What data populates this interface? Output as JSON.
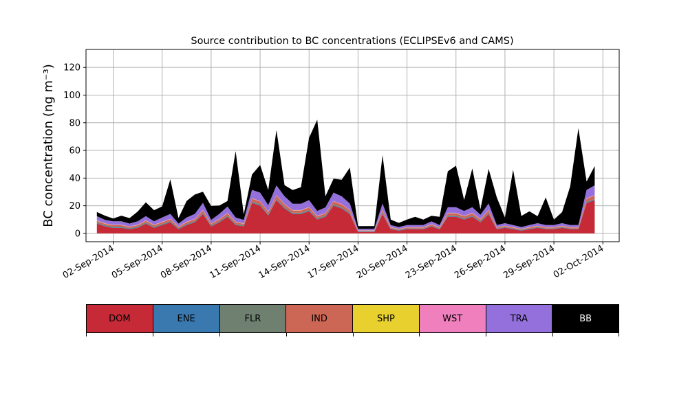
{
  "chart_data": {
    "type": "area",
    "title": "Source contribution to BC concentrations (ECLIPSEv6 and CAMS)",
    "ylabel": "BC concentration (ng m⁻³)",
    "xlabel": "",
    "grid": true,
    "ylim": [
      -6,
      133
    ],
    "yticks": [
      0,
      20,
      40,
      60,
      80,
      100,
      120
    ],
    "x_range": [
      "2014-08-31T08:00",
      "2014-10-03T00:00"
    ],
    "x_ticks": [
      {
        "date": "2014-09-02",
        "label": "02-Sep-2014"
      },
      {
        "date": "2014-09-05",
        "label": "05-Sep-2014"
      },
      {
        "date": "2014-09-08",
        "label": "08-Sep-2014"
      },
      {
        "date": "2014-09-11",
        "label": "11-Sep-2014"
      },
      {
        "date": "2014-09-14",
        "label": "14-Sep-2014"
      },
      {
        "date": "2014-09-17",
        "label": "17-Sep-2014"
      },
      {
        "date": "2014-09-20",
        "label": "20-Sep-2014"
      },
      {
        "date": "2014-09-23",
        "label": "23-Sep-2014"
      },
      {
        "date": "2014-09-26",
        "label": "26-Sep-2014"
      },
      {
        "date": "2014-09-29",
        "label": "29-Sep-2014"
      },
      {
        "date": "2014-10-02",
        "label": "02-Oct-2014"
      }
    ],
    "legend_placement": "below chart (color bar)",
    "dates": [
      "2014-09-01T00:00",
      "2014-09-01T12:00",
      "2014-09-02T00:00",
      "2014-09-02T12:00",
      "2014-09-03T00:00",
      "2014-09-03T12:00",
      "2014-09-04T00:00",
      "2014-09-04T12:00",
      "2014-09-05T00:00",
      "2014-09-05T12:00",
      "2014-09-06T00:00",
      "2014-09-06T12:00",
      "2014-09-07T00:00",
      "2014-09-07T12:00",
      "2014-09-08T00:00",
      "2014-09-08T12:00",
      "2014-09-09T00:00",
      "2014-09-09T12:00",
      "2014-09-10T00:00",
      "2014-09-10T12:00",
      "2014-09-11T00:00",
      "2014-09-11T12:00",
      "2014-09-12T00:00",
      "2014-09-12T12:00",
      "2014-09-13T00:00",
      "2014-09-13T12:00",
      "2014-09-14T00:00",
      "2014-09-14T12:00",
      "2014-09-15T00:00",
      "2014-09-15T12:00",
      "2014-09-16T00:00",
      "2014-09-16T12:00",
      "2014-09-17T00:00",
      "2014-09-17T12:00",
      "2014-09-18T00:00",
      "2014-09-18T12:00",
      "2014-09-19T00:00",
      "2014-09-19T12:00",
      "2014-09-20T00:00",
      "2014-09-20T12:00",
      "2014-09-21T00:00",
      "2014-09-21T12:00",
      "2014-09-22T00:00",
      "2014-09-22T12:00",
      "2014-09-23T00:00",
      "2014-09-23T12:00",
      "2014-09-24T00:00",
      "2014-09-24T12:00",
      "2014-09-25T00:00",
      "2014-09-25T12:00",
      "2014-09-26T00:00",
      "2014-09-26T12:00",
      "2014-09-27T00:00",
      "2014-09-27T12:00",
      "2014-09-28T00:00",
      "2014-09-28T12:00",
      "2014-09-29T00:00",
      "2014-09-29T12:00",
      "2014-09-30T00:00",
      "2014-09-30T12:00",
      "2014-10-01T00:00",
      "2014-10-01T12:00"
    ],
    "series": [
      {
        "name": "DOM",
        "color": "#c62a36",
        "values": [
          7,
          5,
          4,
          4,
          3,
          4,
          7,
          4,
          6,
          8,
          3,
          6,
          8,
          14,
          5,
          8,
          12,
          6,
          5,
          22,
          20,
          13,
          24,
          18,
          14,
          14,
          16,
          10,
          12,
          20,
          18,
          14,
          1,
          1,
          1,
          14,
          3,
          2,
          3,
          3,
          3,
          5,
          3,
          12,
          12,
          10,
          12,
          8,
          14,
          3,
          4,
          3,
          2,
          3,
          4,
          3,
          3,
          4,
          3,
          3,
          22,
          24
        ]
      },
      {
        "name": "ENE",
        "color": "#3a78b0",
        "values": [
          0.4,
          0.4,
          0.4,
          0.4,
          0.4,
          0.4,
          0.4,
          0.4,
          0.4,
          0.4,
          0.4,
          0.4,
          0.4,
          0.4,
          0.4,
          0.4,
          0.4,
          0.4,
          0.4,
          0.4,
          0.4,
          0.4,
          0.4,
          0.4,
          0.4,
          0.4,
          0.4,
          0.4,
          0.4,
          0.4,
          0.4,
          0.4,
          0.3,
          0.3,
          0.3,
          0.4,
          0.3,
          0.3,
          0.3,
          0.3,
          0.3,
          0.3,
          0.3,
          0.4,
          0.4,
          0.4,
          0.4,
          0.4,
          0.4,
          0.3,
          0.3,
          0.3,
          0.3,
          0.3,
          0.3,
          0.3,
          0.3,
          0.3,
          0.3,
          0.3,
          0.4,
          0.4
        ]
      },
      {
        "name": "FLR",
        "color": "#6f8070",
        "values": [
          0.5,
          0.5,
          0.5,
          0.5,
          0.5,
          0.5,
          0.5,
          0.5,
          0.5,
          0.5,
          0.5,
          0.5,
          0.5,
          0.5,
          0.5,
          0.5,
          0.5,
          0.5,
          0.5,
          0.5,
          0.5,
          0.5,
          0.5,
          0.5,
          0.5,
          0.5,
          0.5,
          0.5,
          0.5,
          0.5,
          0.5,
          0.5,
          0.3,
          0.3,
          0.3,
          0.5,
          0.3,
          0.3,
          0.3,
          0.3,
          0.3,
          0.3,
          0.3,
          0.5,
          0.5,
          0.5,
          0.5,
          0.5,
          0.5,
          0.3,
          0.3,
          0.3,
          0.3,
          0.3,
          0.3,
          0.3,
          0.3,
          0.3,
          0.3,
          0.3,
          0.5,
          0.5
        ]
      },
      {
        "name": "IND",
        "color": "#cc6655",
        "values": [
          1.2,
          1,
          1,
          1,
          0.8,
          1,
          1.2,
          1,
          1.2,
          1.3,
          0.8,
          1.2,
          1.3,
          1.8,
          1,
          1.3,
          1.6,
          1.2,
          1,
          2.2,
          2.2,
          1.6,
          2.4,
          2,
          1.6,
          1.6,
          1.8,
          1.4,
          1.5,
          2.2,
          2,
          1.8,
          0.4,
          0.4,
          0.4,
          1.8,
          0.6,
          0.5,
          0.6,
          0.6,
          0.6,
          0.8,
          0.6,
          1.6,
          1.6,
          1.4,
          1.6,
          1.2,
          1.8,
          0.6,
          0.7,
          0.6,
          0.5,
          0.6,
          0.7,
          0.6,
          0.6,
          0.7,
          0.6,
          0.6,
          2.2,
          2.4
        ]
      },
      {
        "name": "SHP",
        "color": "#e8d02e",
        "values": [
          0.1,
          0.1,
          0.1,
          0.1,
          0.1,
          0.1,
          0.1,
          0.1,
          0.1,
          0.1,
          0.1,
          0.1,
          0.1,
          0.1,
          0.1,
          0.1,
          0.1,
          0.1,
          0.1,
          0.1,
          0.1,
          0.1,
          0.1,
          0.1,
          0.1,
          0.1,
          0.1,
          0.1,
          0.1,
          0.1,
          0.1,
          0.1,
          0.1,
          0.1,
          0.1,
          0.1,
          0.1,
          0.1,
          0.1,
          0.1,
          0.1,
          0.1,
          0.1,
          0.1,
          0.1,
          0.1,
          0.1,
          0.1,
          0.1,
          0.1,
          0.1,
          0.1,
          0.1,
          0.1,
          0.1,
          0.1,
          0.1,
          0.1,
          0.1,
          0.1,
          0.1,
          0.1
        ]
      },
      {
        "name": "WST",
        "color": "#f07fbe",
        "values": [
          0.3,
          0.3,
          0.3,
          0.3,
          0.3,
          0.3,
          0.3,
          0.3,
          0.3,
          0.3,
          0.3,
          0.3,
          0.3,
          0.3,
          0.3,
          0.3,
          0.3,
          0.3,
          0.3,
          0.3,
          0.3,
          0.3,
          0.3,
          0.3,
          0.3,
          0.3,
          0.3,
          0.3,
          0.3,
          0.3,
          0.3,
          0.3,
          0.2,
          0.2,
          0.2,
          0.3,
          0.2,
          0.2,
          0.2,
          0.2,
          0.2,
          0.2,
          0.2,
          0.3,
          0.3,
          0.3,
          0.3,
          0.3,
          0.3,
          0.2,
          0.2,
          0.2,
          0.2,
          0.2,
          0.2,
          0.2,
          0.2,
          0.2,
          0.2,
          0.2,
          0.3,
          0.3
        ]
      },
      {
        "name": "TRA",
        "color": "#9370db",
        "values": [
          3,
          2.5,
          2.5,
          2.5,
          2,
          2.5,
          3,
          2.5,
          3,
          3.5,
          2,
          3,
          3.5,
          5,
          2.5,
          3.5,
          4.5,
          3,
          2.5,
          6,
          6,
          4.5,
          7,
          5.5,
          4.5,
          4.5,
          5,
          3.5,
          4,
          6,
          5.5,
          4.5,
          1,
          1,
          1,
          4.5,
          1.5,
          1.2,
          1.5,
          1.5,
          1.5,
          2,
          1.5,
          4,
          4,
          3.5,
          4,
          3,
          4.5,
          1.5,
          1.8,
          1.5,
          1.2,
          1.5,
          1.8,
          1.5,
          1.5,
          1.8,
          1.5,
          1.5,
          6,
          7
        ]
      },
      {
        "name": "BB",
        "color": "#000000",
        "values": [
          3,
          3,
          2,
          4,
          4,
          7,
          10,
          8,
          8,
          25,
          4,
          12,
          14,
          8,
          10,
          6,
          4,
          48,
          4,
          11,
          20,
          11,
          40,
          8,
          10,
          12,
          45,
          66,
          8,
          10,
          12,
          26,
          2,
          2,
          2,
          35,
          4,
          3,
          4,
          6,
          4,
          4,
          6,
          26,
          30,
          8,
          28,
          4,
          25,
          20,
          4,
          40,
          8,
          10,
          5,
          20,
          4,
          8,
          28,
          70,
          6,
          14
        ]
      }
    ]
  }
}
